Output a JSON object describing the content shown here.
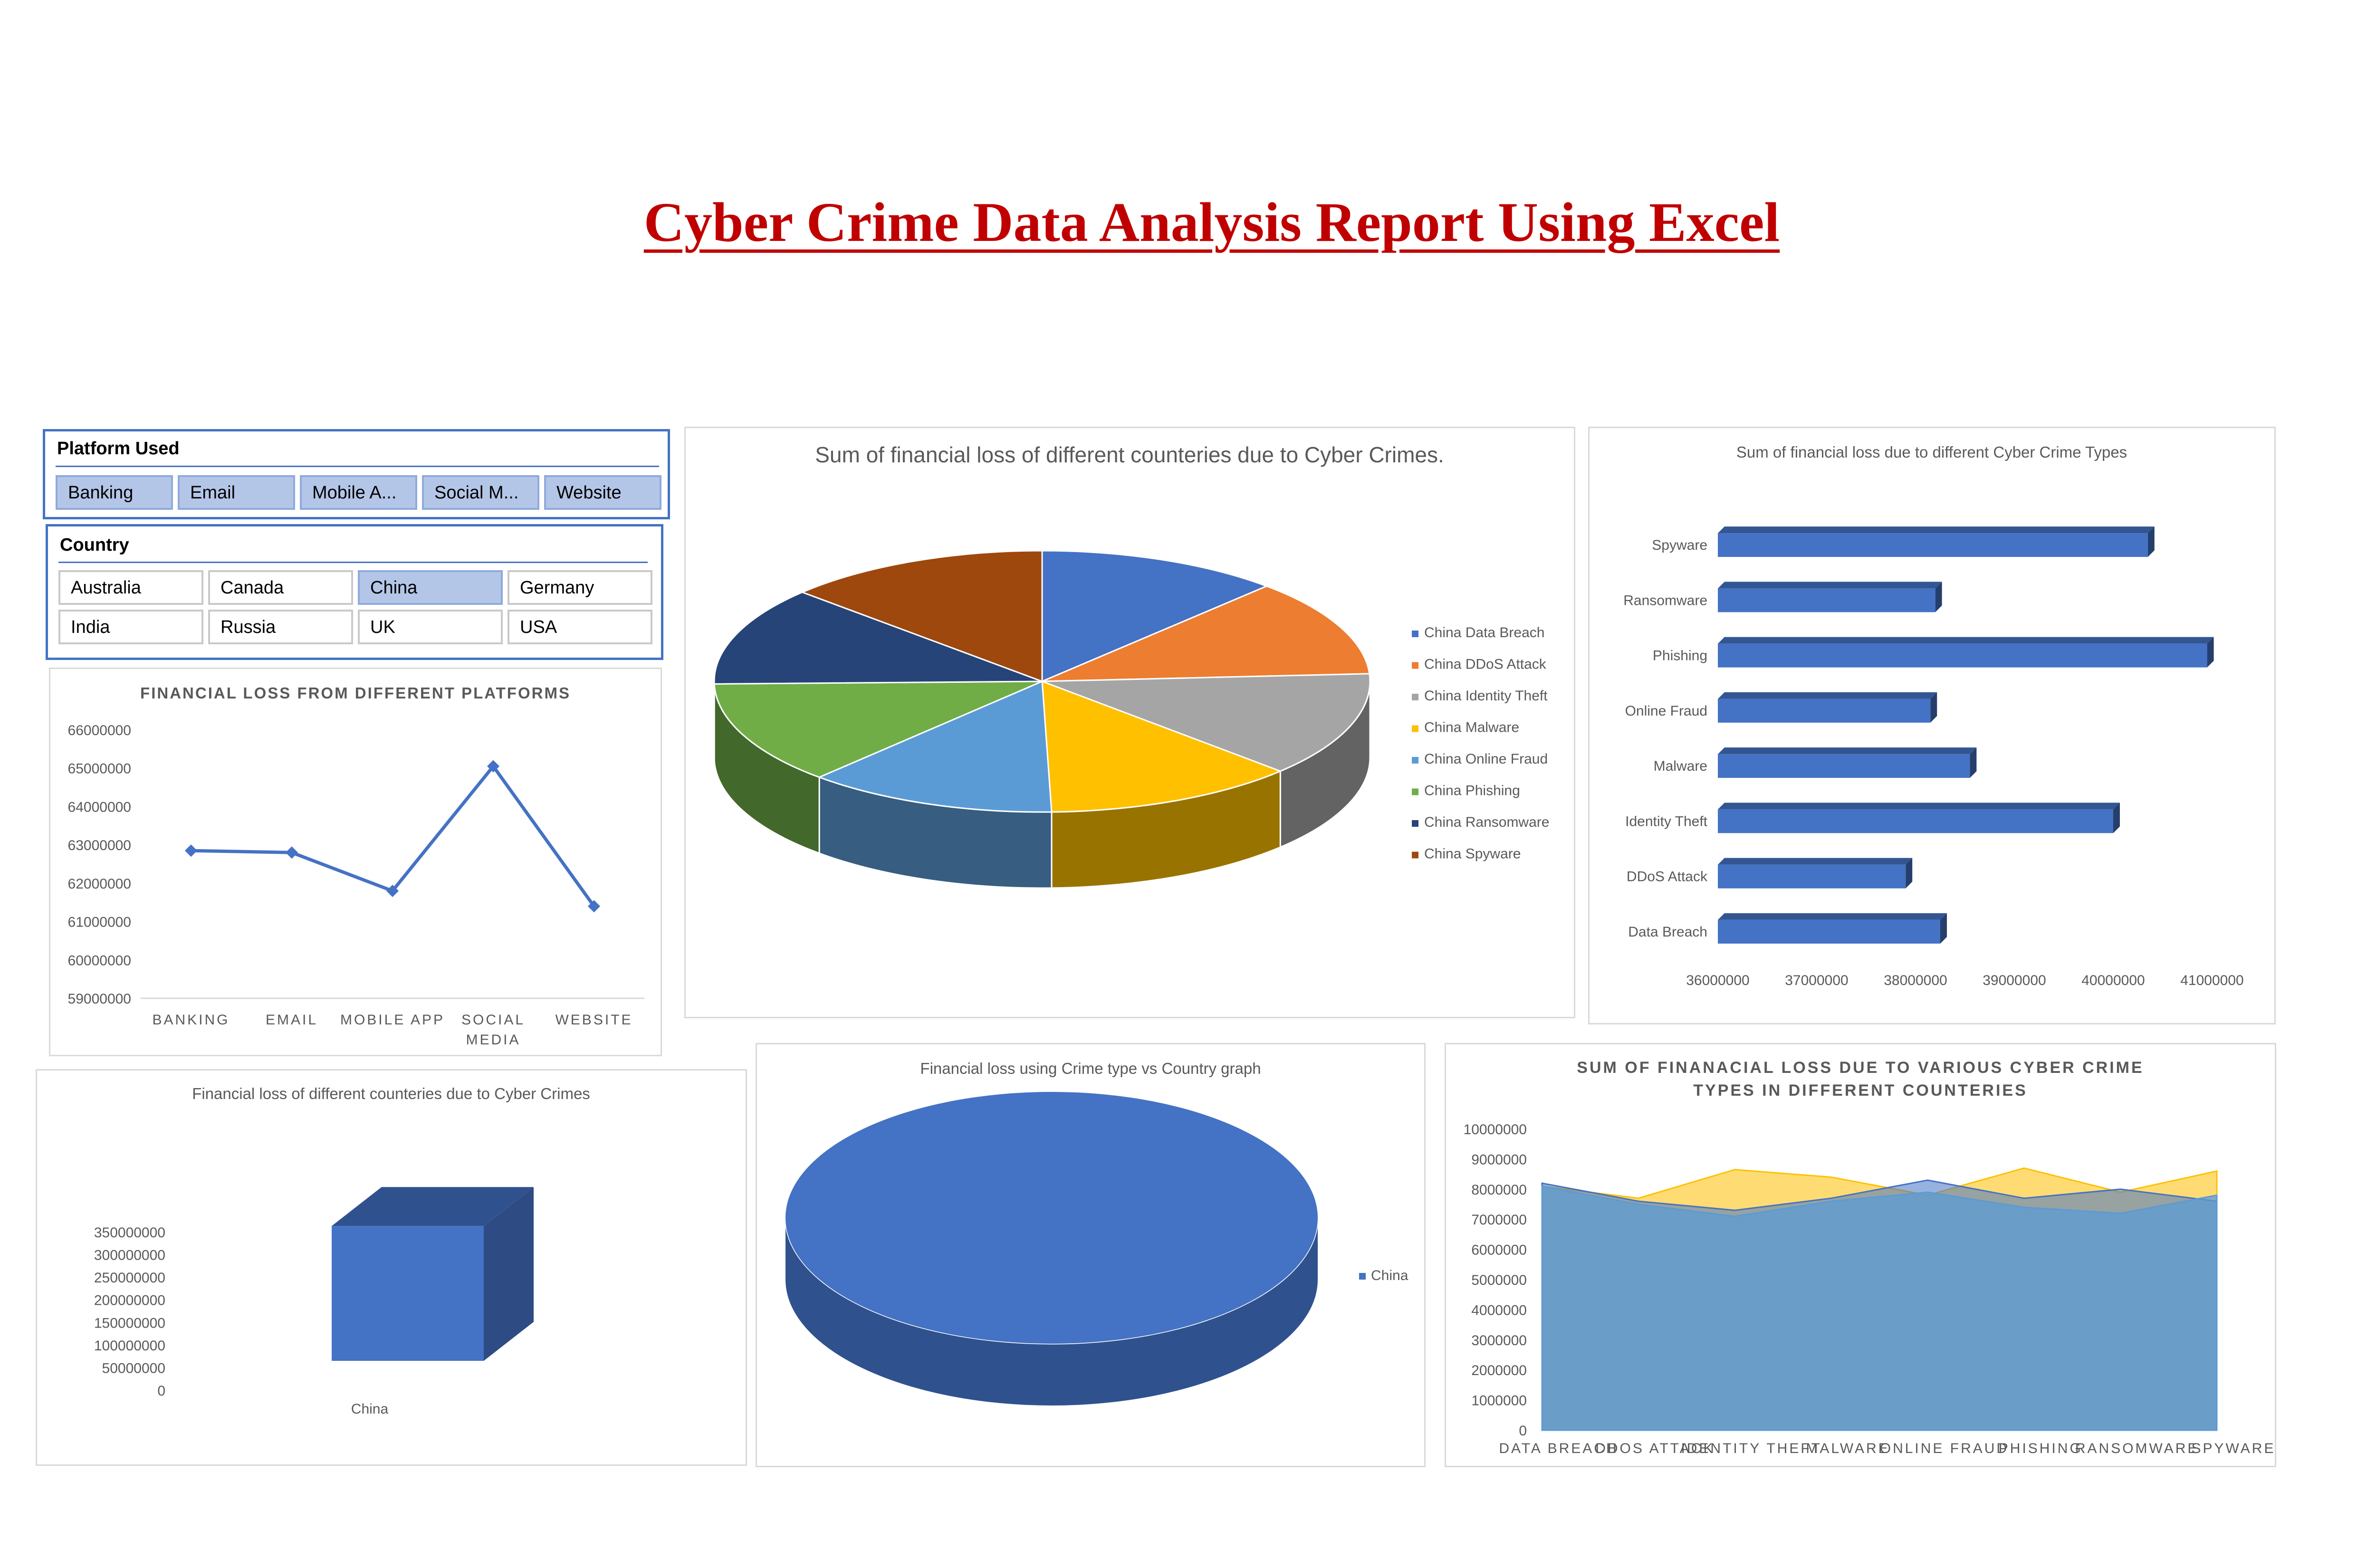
{
  "page": {
    "title": "Cyber Crime Data Analysis Report Using Excel"
  },
  "slicers": {
    "platform": {
      "title": "Platform Used",
      "items": [
        {
          "label": "Banking",
          "selected": true
        },
        {
          "label": "Email",
          "selected": true
        },
        {
          "label": "Mobile A...",
          "selected": true
        },
        {
          "label": "Social M...",
          "selected": true
        },
        {
          "label": "Website",
          "selected": true
        }
      ]
    },
    "country": {
      "title": "Country",
      "items": [
        {
          "label": "Australia",
          "selected": false
        },
        {
          "label": "Canada",
          "selected": false
        },
        {
          "label": "China",
          "selected": true
        },
        {
          "label": "Germany",
          "selected": false
        },
        {
          "label": "India",
          "selected": false
        },
        {
          "label": "Russia",
          "selected": false
        },
        {
          "label": "UK",
          "selected": false
        },
        {
          "label": "USA",
          "selected": false
        }
      ]
    }
  },
  "chart_data": [
    {
      "id": "pie-country-crime",
      "type": "pie",
      "title": "Sum of financial loss of different counteries due to Cyber Crimes.",
      "categories": [
        "China Data Breach",
        "China DDoS Attack",
        "China Identity Theft",
        "China Malware",
        "China Online Fraud",
        "China Phishing",
        "China Ransomware",
        "China Spyware"
      ],
      "values": [
        37700000,
        37900000,
        40800000,
        39200000,
        38800000,
        40200000,
        38500000,
        41000000
      ],
      "colors": [
        "#4472c4",
        "#ed7d31",
        "#a5a5a5",
        "#ffc000",
        "#5b9bd5",
        "#70ad47",
        "#264478",
        "#9e480e"
      ],
      "legend": "right"
    },
    {
      "id": "bar-crime-types",
      "type": "bar",
      "orientation": "horizontal",
      "title": "Sum of financial loss due to different Cyber Crime Types",
      "categories": [
        "Data Breach",
        "DDoS Attack",
        "Identity Theft",
        "Malware",
        "Online Fraud",
        "Phishing",
        "Ransomware",
        "Spyware"
      ],
      "values": [
        38250000,
        37900000,
        40000000,
        38550000,
        38150000,
        40950000,
        38200000,
        40350000
      ],
      "xlim": [
        36000000,
        41000000
      ],
      "ticks": [
        36000000,
        37000000,
        38000000,
        39000000,
        40000000,
        41000000
      ],
      "color": "#4472c4"
    },
    {
      "id": "line-platforms",
      "type": "line",
      "title": "FINANCIAL LOSS FROM DIFFERENT PLATFORMS",
      "categories": [
        "BANKING",
        "EMAIL",
        "MOBILE APP",
        "SOCIAL MEDIA",
        "WEBSITE"
      ],
      "values": [
        62850000,
        62800000,
        61800000,
        65050000,
        61400000
      ],
      "ylim": [
        59000000,
        66000000
      ],
      "ticks": [
        59000000,
        60000000,
        61000000,
        62000000,
        63000000,
        64000000,
        65000000,
        66000000
      ],
      "color": "#4472c4",
      "grid": false
    },
    {
      "id": "column-countries",
      "type": "bar",
      "title": "Financial loss of different counteries due to Cyber Crimes",
      "categories": [
        "China"
      ],
      "values": [
        313000000
      ],
      "ylim": [
        0,
        350000000
      ],
      "ticks": [
        0,
        50000000,
        100000000,
        150000000,
        200000000,
        250000000,
        300000000,
        350000000
      ],
      "color": "#4472c4"
    },
    {
      "id": "pie-crime-vs-country",
      "type": "pie",
      "title": "Financial loss using Crime type vs Country graph",
      "categories": [
        "China"
      ],
      "values": [
        313000000
      ],
      "colors": [
        "#4472c4"
      ],
      "legend": "right"
    },
    {
      "id": "area-types-countries",
      "type": "area",
      "title": "SUM OF FINANACIAL LOSS DUE TO VARIOUS CYBER CRIME TYPES IN DIFFERENT COUNTERIES",
      "categories": [
        "DATA BREACH",
        "DDOS ATTACK",
        "IDENTITY THEFT",
        "MALWARE",
        "ONLINE FRAUD",
        "PHISHING",
        "RANSOMWARE",
        "SPYWARE"
      ],
      "series": [
        {
          "values": [
            8100000,
            7700000,
            8650000,
            8400000,
            7800000,
            8700000,
            7900000,
            8600000
          ],
          "color": "#ffc000"
        },
        {
          "values": [
            8200000,
            7600000,
            7300000,
            7700000,
            8300000,
            7700000,
            8000000,
            7600000
          ],
          "color": "#4472c4"
        },
        {
          "values": [
            8100000,
            7500000,
            7100000,
            7600000,
            7900000,
            7400000,
            7200000,
            7800000
          ],
          "color": "#5b9bd5"
        }
      ],
      "ylim": [
        0,
        10000000
      ],
      "ticks": [
        0,
        1000000,
        2000000,
        3000000,
        4000000,
        5000000,
        6000000,
        7000000,
        8000000,
        9000000,
        10000000
      ]
    }
  ]
}
